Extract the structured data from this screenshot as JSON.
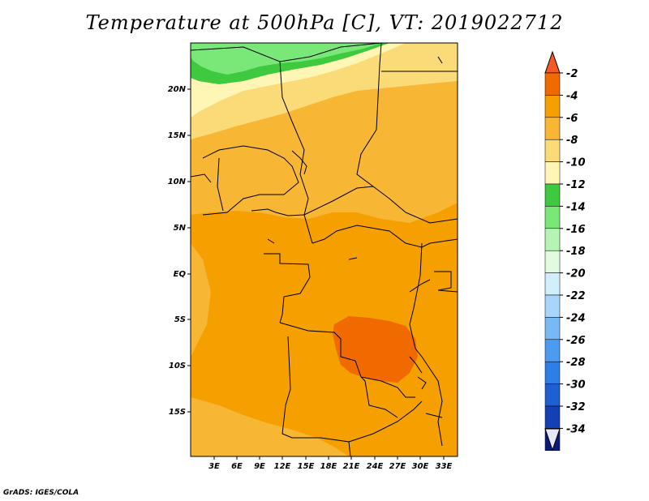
{
  "title": "Temperature at 500hPa [C], VT: 2019022712",
  "credit": "GrADS: IGES/COLA",
  "map": {
    "lat_labels": [
      "20N",
      "15N",
      "10N",
      "5N",
      "EQ",
      "5S",
      "10S",
      "15S"
    ],
    "lon_labels": [
      "3E",
      "6E",
      "9E",
      "12E",
      "15E",
      "18E",
      "21E",
      "24E",
      "27E",
      "30E",
      "33E"
    ],
    "colors": {
      "minus4_minus2": "#f06a00",
      "minus6_minus4": "#f5a000",
      "minus8_minus6": "#f7b633",
      "minus10_minus8": "#fbdb78",
      "minus12_minus10": "#fff5b5",
      "minus14_minus12": "#3ec93e",
      "minus16_minus14": "#79e879"
    }
  },
  "colorbar": {
    "labels": [
      "-2",
      "-4",
      "-6",
      "-8",
      "-10",
      "-12",
      "-14",
      "-16",
      "-18",
      "-20",
      "-22",
      "-24",
      "-26",
      "-28",
      "-30",
      "-32",
      "-34"
    ],
    "colors": [
      "#f06a00",
      "#f5a000",
      "#f7b633",
      "#fbdb78",
      "#fff5b5",
      "#3ec93e",
      "#79e879",
      "#b4f5b4",
      "#e1fbe1",
      "#d2eefc",
      "#a8d6f8",
      "#78b9f5",
      "#4c9bf0",
      "#2e7ee8",
      "#1e5fd2",
      "#143fb5",
      "#0a1a78"
    ],
    "top_arrow_color": "#f25a2a",
    "bottom_arrow_color": "#e6e6f8"
  }
}
